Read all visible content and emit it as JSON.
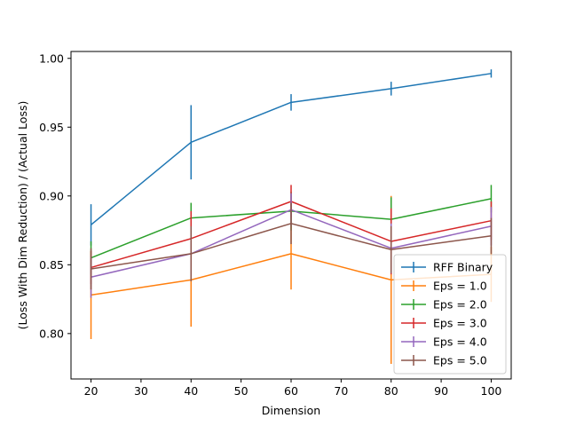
{
  "chart_data": {
    "type": "line",
    "title": "",
    "xlabel": "Dimension",
    "ylabel": "(Loss With Dim Reduction) / (Actual Loss)",
    "xlim": [
      16,
      104
    ],
    "ylim": [
      0.767,
      1.005
    ],
    "x": [
      20,
      40,
      60,
      80,
      100
    ],
    "x_ticks": [
      20,
      30,
      40,
      50,
      60,
      70,
      80,
      90,
      100
    ],
    "x_tick_labels": [
      "20",
      "30",
      "40",
      "50",
      "60",
      "70",
      "80",
      "90",
      "100"
    ],
    "y_ticks": [
      0.8,
      0.85,
      0.9,
      0.95,
      1.0
    ],
    "y_tick_labels": [
      "0.80",
      "0.85",
      "0.90",
      "0.95",
      "1.00"
    ],
    "grid": false,
    "legend_position": "lower-right",
    "series": [
      {
        "name": "RFF Binary",
        "color": "#1f77b4",
        "values": [
          0.879,
          0.939,
          0.968,
          0.978,
          0.989
        ],
        "errors": [
          0.015,
          0.027,
          0.006,
          0.005,
          0.003
        ]
      },
      {
        "name": "Eps = 1.0",
        "color": "#ff7f0e",
        "values": [
          0.828,
          0.839,
          0.858,
          0.839,
          0.843
        ],
        "errors": [
          0.032,
          0.034,
          0.026,
          0.061,
          0.02
        ]
      },
      {
        "name": "Eps = 2.0",
        "color": "#2ca02c",
        "values": [
          0.855,
          0.884,
          0.889,
          0.883,
          0.898
        ],
        "errors": [
          0.012,
          0.011,
          0.014,
          0.016,
          0.01
        ]
      },
      {
        "name": "Eps = 3.0",
        "color": "#d62728",
        "values": [
          0.848,
          0.869,
          0.896,
          0.867,
          0.882
        ],
        "errors": [
          0.012,
          0.02,
          0.012,
          0.024,
          0.014
        ]
      },
      {
        "name": "Eps = 4.0",
        "color": "#9467bd",
        "values": [
          0.841,
          0.858,
          0.89,
          0.862,
          0.878
        ],
        "errors": [
          0.015,
          0.016,
          0.012,
          0.018,
          0.014
        ]
      },
      {
        "name": "Eps = 5.0",
        "color": "#8c564b",
        "values": [
          0.847,
          0.858,
          0.88,
          0.861,
          0.871
        ],
        "errors": [
          0.015,
          0.02,
          0.015,
          0.017,
          0.013
        ]
      }
    ]
  }
}
